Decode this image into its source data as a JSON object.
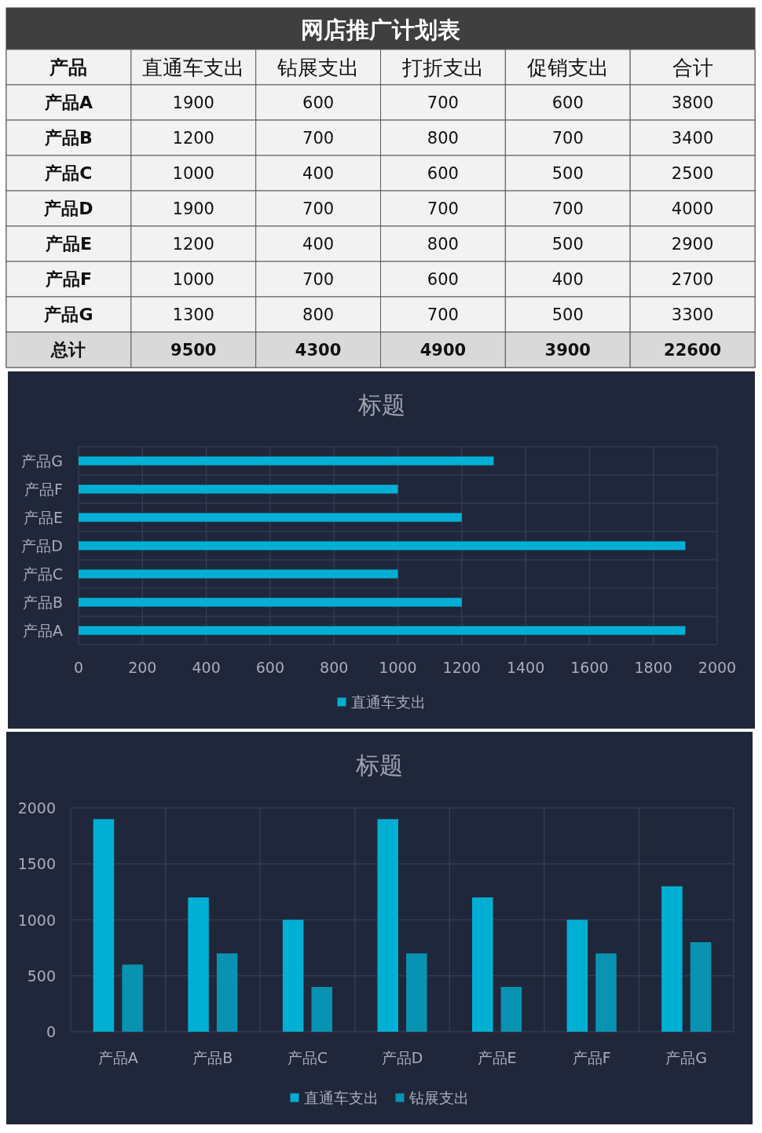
{
  "chart_data": [
    {
      "type": "heatmap",
      "title": "网店推广计划表",
      "ylabel": "产品",
      "categories": [
        "直通车支出",
        "钻展支出",
        "打折支出",
        "促销支出",
        "合计"
      ],
      "y_categories": [
        "产品A",
        "产品B",
        "产品C",
        "产品D",
        "产品E",
        "产品F",
        "产品G",
        "总计"
      ],
      "cells": [
        [
          1900,
          600,
          700,
          600,
          3800
        ],
        [
          1200,
          700,
          800,
          700,
          3400
        ],
        [
          1000,
          400,
          600,
          500,
          2500
        ],
        [
          1900,
          700,
          700,
          700,
          4000
        ],
        [
          1200,
          400,
          800,
          500,
          2900
        ],
        [
          1000,
          700,
          600,
          400,
          2700
        ],
        [
          1300,
          800,
          700,
          500,
          3300
        ],
        [
          9500,
          4300,
          4900,
          3900,
          22600
        ]
      ],
      "data_labels": true
    },
    {
      "type": "bar",
      "title": "标题",
      "orientation": "horizontal",
      "categories": [
        "产品G",
        "产品F",
        "产品E",
        "产品D",
        "产品C",
        "产品B",
        "产品A"
      ],
      "series": [
        {
          "name": "直通车支出",
          "color": "#00b0d4",
          "values": [
            1300,
            1000,
            1200,
            1900,
            1000,
            1200,
            1900
          ]
        }
      ],
      "xlim": [
        0,
        2000
      ],
      "xticks": [
        0,
        200,
        400,
        600,
        800,
        1000,
        1200,
        1400,
        1600,
        1800,
        2000
      ],
      "grid": true,
      "legend": "bottom"
    },
    {
      "type": "bar",
      "title": "标题",
      "categories": [
        "产品A",
        "产品B",
        "产品C",
        "产品D",
        "产品E",
        "产品F",
        "产品G"
      ],
      "series": [
        {
          "name": "直通车支出",
          "color": "#00b0d4",
          "values": [
            1900,
            1200,
            1000,
            1900,
            1200,
            1000,
            1300
          ]
        },
        {
          "name": "钻展支出",
          "color": "#0893b3",
          "values": [
            600,
            700,
            400,
            700,
            400,
            700,
            800
          ]
        }
      ],
      "ylim": [
        0,
        2000
      ],
      "yticks": [
        0,
        500,
        1000,
        1500,
        2000
      ],
      "grid": true,
      "legend": "bottom"
    }
  ]
}
